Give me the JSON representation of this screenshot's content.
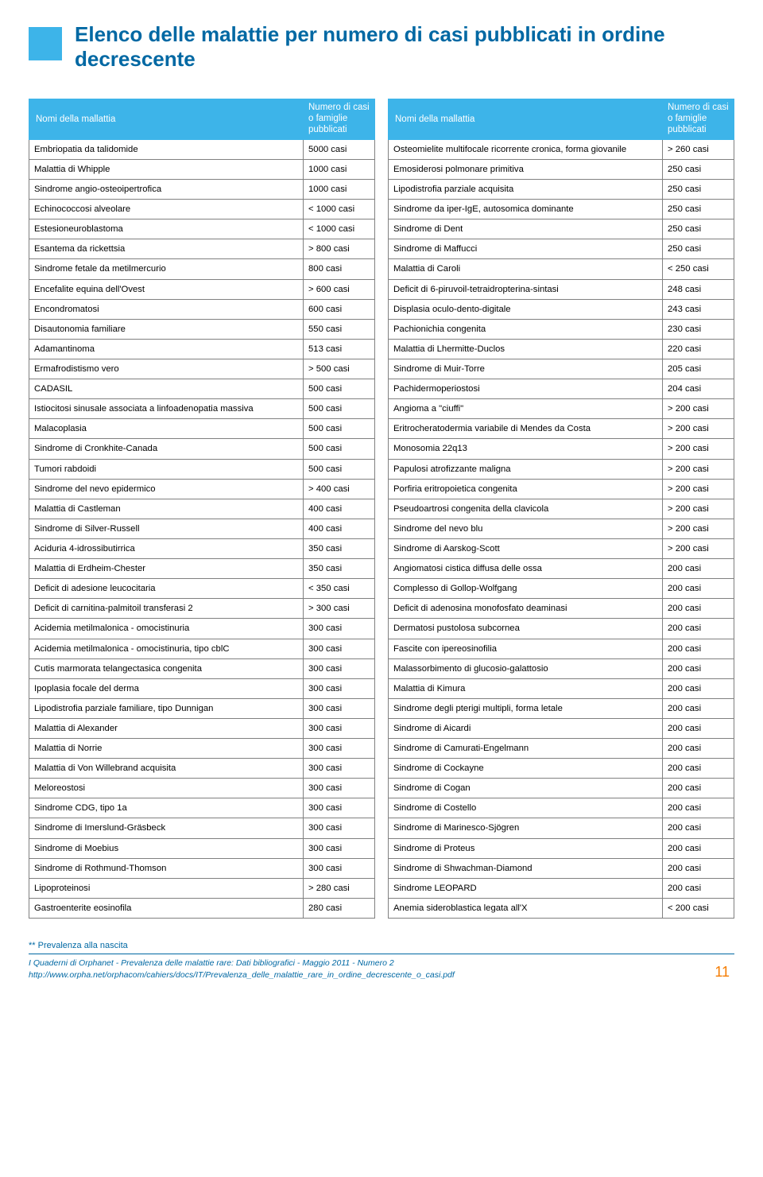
{
  "title": "Elenco delle malattie per numero di casi pubblicati in ordine decrescente",
  "header": {
    "name": "Nomi della mallattia",
    "count": "Numero di casi o famiglie pubblicati"
  },
  "left": [
    {
      "n": "Embriopatia da talidomide",
      "c": "5000 casi"
    },
    {
      "n": "Malattia di Whipple",
      "c": "1000 casi"
    },
    {
      "n": "Sindrome angio-osteoipertrofica",
      "c": "1000 casi"
    },
    {
      "n": "Echinococcosi alveolare",
      "c": "< 1000 casi"
    },
    {
      "n": "Estesioneuroblastoma",
      "c": "< 1000 casi"
    },
    {
      "n": "Esantema da rickettsia",
      "c": "> 800 casi"
    },
    {
      "n": "Sindrome fetale da metilmercurio",
      "c": "800 casi"
    },
    {
      "n": "Encefalite equina dell'Ovest",
      "c": "> 600 casi"
    },
    {
      "n": "Encondromatosi",
      "c": "600 casi"
    },
    {
      "n": "Disautonomia familiare",
      "c": "550 casi"
    },
    {
      "n": "Adamantinoma",
      "c": "513 casi"
    },
    {
      "n": "Ermafrodistismo vero",
      "c": "> 500 casi"
    },
    {
      "n": "CADASIL",
      "c": "500 casi"
    },
    {
      "n": "Istiocitosi sinusale associata a linfoadenopatia massiva",
      "c": "500 casi"
    },
    {
      "n": "Malacoplasia",
      "c": "500 casi"
    },
    {
      "n": "Sindrome di Cronkhite-Canada",
      "c": "500 casi"
    },
    {
      "n": "Tumori rabdoidi",
      "c": "500 casi"
    },
    {
      "n": "Sindrome del nevo epidermico",
      "c": "> 400 casi"
    },
    {
      "n": "Malattia di Castleman",
      "c": "400 casi"
    },
    {
      "n": "Sindrome di Silver-Russell",
      "c": "400 casi"
    },
    {
      "n": "Aciduria 4-idrossibutirrica",
      "c": "350 casi"
    },
    {
      "n": "Malattia di Erdheim-Chester",
      "c": "350 casi"
    },
    {
      "n": "Deficit di adesione leucocitaria",
      "c": "< 350 casi"
    },
    {
      "n": "Deficit di carnitina-palmitoil transferasi 2",
      "c": "> 300 casi"
    },
    {
      "n": "Acidemia metilmalonica - omocistinuria",
      "c": "300 casi"
    },
    {
      "n": "Acidemia metilmalonica - omocistinuria, tipo cblC",
      "c": "300 casi"
    },
    {
      "n": "Cutis marmorata telangectasica congenita",
      "c": "300 casi"
    },
    {
      "n": "Ipoplasia focale del derma",
      "c": "300 casi"
    },
    {
      "n": "Lipodistrofia parziale familiare, tipo Dunnigan",
      "c": "300 casi"
    },
    {
      "n": "Malattia di Alexander",
      "c": "300 casi"
    },
    {
      "n": "Malattia di Norrie",
      "c": "300 casi"
    },
    {
      "n": "Malattia di Von Willebrand acquisita",
      "c": "300 casi"
    },
    {
      "n": "Meloreostosi",
      "c": "300 casi"
    },
    {
      "n": "Sindrome CDG, tipo 1a",
      "c": "300 casi"
    },
    {
      "n": "Sindrome di Imerslund-Gräsbeck",
      "c": "300 casi"
    },
    {
      "n": "Sindrome di Moebius",
      "c": "300 casi"
    },
    {
      "n": "Sindrome di Rothmund-Thomson",
      "c": "300 casi"
    },
    {
      "n": "Lipoproteinosi",
      "c": "> 280 casi"
    },
    {
      "n": "Gastroenterite eosinofila",
      "c": "280 casi"
    }
  ],
  "right": [
    {
      "n": "Osteomielite multifocale ricorrente cronica, forma giovanile",
      "c": "> 260 casi"
    },
    {
      "n": "Emosiderosi polmonare primitiva",
      "c": "250 casi"
    },
    {
      "n": "Lipodistrofia parziale acquisita",
      "c": "250 casi"
    },
    {
      "n": "Sindrome da iper-IgE, autosomica dominante",
      "c": "250 casi"
    },
    {
      "n": "Sindrome di Dent",
      "c": "250 casi"
    },
    {
      "n": "Sindrome di Maffucci",
      "c": "250 casi"
    },
    {
      "n": "Malattia di Caroli",
      "c": "< 250 casi"
    },
    {
      "n": "Deficit di 6-piruvoil-tetraidropterina-sintasi",
      "c": "248 casi"
    },
    {
      "n": "Displasia oculo-dento-digitale",
      "c": "243 casi"
    },
    {
      "n": "Pachionichia congenita",
      "c": "230 casi"
    },
    {
      "n": "Malattia di Lhermitte-Duclos",
      "c": "220 casi"
    },
    {
      "n": "Sindrome di Muir-Torre",
      "c": "205 casi"
    },
    {
      "n": "Pachidermoperiostosi",
      "c": "204 casi"
    },
    {
      "n": "Angioma a \"ciuffi\"",
      "c": "> 200 casi"
    },
    {
      "n": "Eritrocheratodermia variabile di Mendes da Costa",
      "c": "> 200 casi"
    },
    {
      "n": "Monosomia 22q13",
      "c": "> 200 casi"
    },
    {
      "n": "Papulosi atrofizzante maligna",
      "c": "> 200 casi"
    },
    {
      "n": "Porfiria eritropoietica congenita",
      "c": "> 200 casi"
    },
    {
      "n": "Pseudoartrosi congenita della clavicola",
      "c": "> 200 casi"
    },
    {
      "n": "Sindrome del nevo blu",
      "c": "> 200 casi"
    },
    {
      "n": "Sindrome di Aarskog-Scott",
      "c": "> 200 casi"
    },
    {
      "n": "Angiomatosi cistica diffusa delle ossa",
      "c": "200 casi"
    },
    {
      "n": "Complesso di Gollop-Wolfgang",
      "c": "200 casi"
    },
    {
      "n": "Deficit di adenosina monofosfato deaminasi",
      "c": "200 casi"
    },
    {
      "n": "Dermatosi pustolosa subcornea",
      "c": "200 casi"
    },
    {
      "n": "Fascite con ipereosinofilia",
      "c": "200 casi"
    },
    {
      "n": "Malassorbimento di glucosio-galattosio",
      "c": "200 casi"
    },
    {
      "n": "Malattia di Kimura",
      "c": "200 casi"
    },
    {
      "n": "Sindrome degli pterigi multipli, forma letale",
      "c": "200 casi"
    },
    {
      "n": "Sindrome di Aicardi",
      "c": "200 casi"
    },
    {
      "n": "Sindrome di Camurati-Engelmann",
      "c": "200 casi"
    },
    {
      "n": "Sindrome di Cockayne",
      "c": "200 casi"
    },
    {
      "n": "Sindrome di Cogan",
      "c": "200 casi"
    },
    {
      "n": "Sindrome di Costello",
      "c": "200 casi"
    },
    {
      "n": "Sindrome di Marinesco-Sjögren",
      "c": "200 casi"
    },
    {
      "n": "Sindrome di Proteus",
      "c": "200 casi"
    },
    {
      "n": "Sindrome di Shwachman-Diamond",
      "c": "200 casi"
    },
    {
      "n": "Sindrome LEOPARD",
      "c": "200 casi"
    },
    {
      "n": "Anemia sideroblastica legata all'X",
      "c": "< 200 casi"
    }
  ],
  "footnote": "** Prevalenza alla nascita",
  "footer": {
    "line1": "I Quaderni di Orphanet - Prevalenza delle malattie rare: Dati bibliografici - Maggio 2011 - Numero 2",
    "line2": "http://www.orpha.net/orphacom/cahiers/docs/IT/Prevalenza_delle_malattie_rare_in_ordine_decrescente_o_casi.pdf"
  },
  "pageNumber": "11"
}
